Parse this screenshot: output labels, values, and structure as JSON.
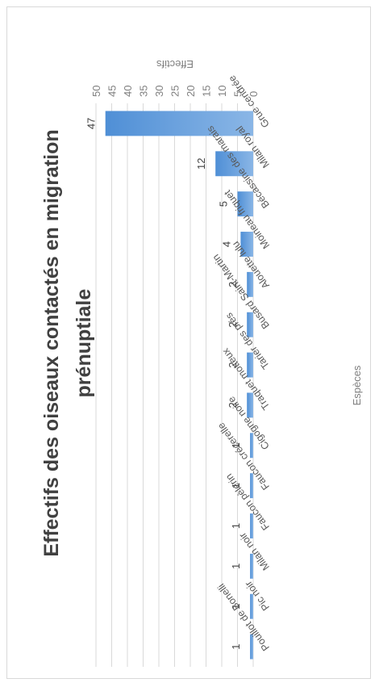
{
  "chart_data": {
    "type": "bar",
    "title_lines": [
      "Effectifs des oiseaux contactés en migration",
      "prénuptiale"
    ],
    "xlabel": "Espèces",
    "ylabel": "Effectifs",
    "ylim": [
      0,
      50
    ],
    "yticks": [
      0,
      5,
      10,
      15,
      20,
      25,
      30,
      35,
      40,
      45,
      50
    ],
    "categories": [
      "Grue cendrée",
      "Milan royal",
      "Bécassine des marais",
      "Moineau friquet",
      "Alouette lulu",
      "Busard Saint-Martin",
      "Tarier des prés",
      "Traquet motteux",
      "Cigogne noire",
      "Faucon crécerelle",
      "Faucon pèlerin",
      "Milan noir",
      "Pic noir",
      "Pouillot de Bonelli"
    ],
    "values": [
      47,
      12,
      5,
      4,
      2,
      2,
      2,
      2,
      1,
      1,
      1,
      1,
      1,
      1
    ],
    "data_labels": [
      "47",
      "12",
      "5",
      "4",
      "2",
      "2",
      "2",
      "2",
      "1",
      "1",
      "1",
      "1",
      "1",
      "1"
    ],
    "grid": true,
    "legend": "none",
    "colors": {
      "bar_top": "#8ab6e6",
      "bar_bottom": "#4f8fd6",
      "grid": "#d9d9d9"
    }
  }
}
